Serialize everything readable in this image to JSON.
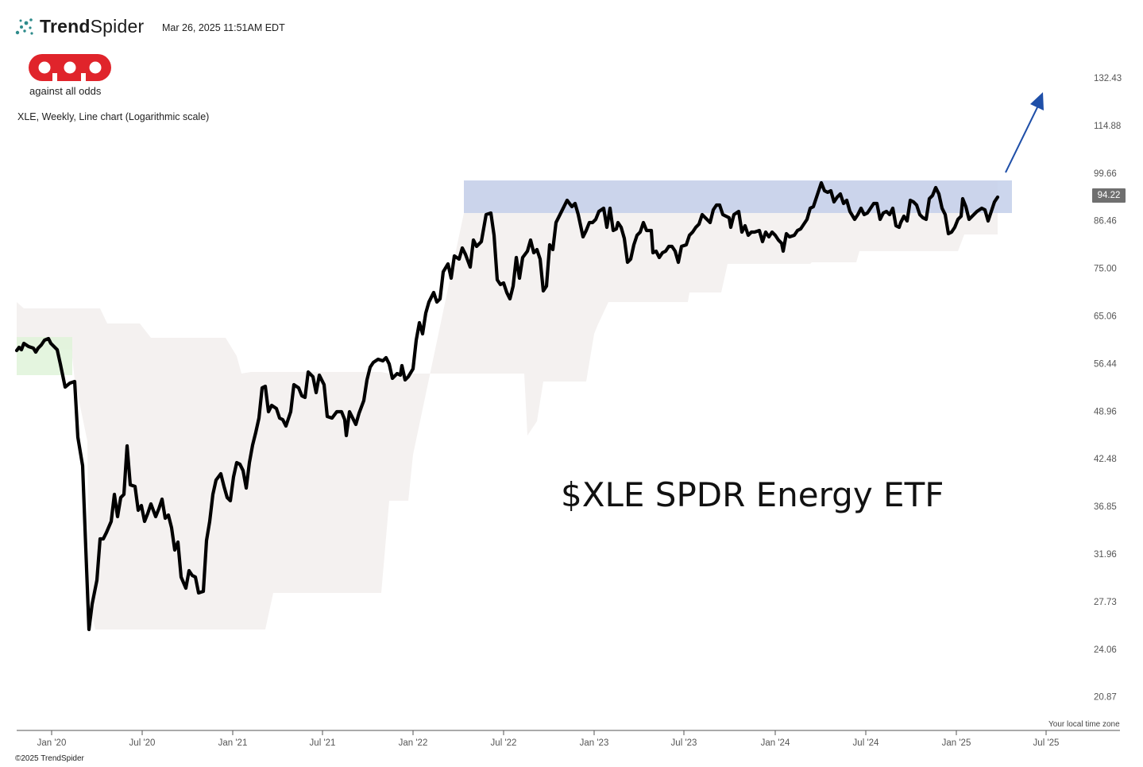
{
  "header": {
    "brand_strong": "Trend",
    "brand_light": "Spider",
    "timestamp": "Mar 26, 2025 11:51AM EDT",
    "brand_icon": "trendspider-dots-icon"
  },
  "logo": {
    "tagline": "against all odds",
    "color": "#e0242b"
  },
  "chart_subtitle": "XLE, Weekly, Line chart (Logarithmic scale)",
  "annotation": "$XLE SPDR Energy ETF",
  "footer": {
    "timezone": "Your local time zone",
    "copyright": "©2025 TrendSpider"
  },
  "price_badge": "94.22",
  "colors": {
    "line": "#000000",
    "band": "#f4f1f0",
    "resistance": "#c3cfea",
    "support_start": "#dff3d9",
    "arrow": "#1f4fa8"
  },
  "chart_data": {
    "type": "line",
    "title": "$XLE SPDR Energy ETF",
    "scale": "log",
    "ylim": [
      20.0,
      140.0
    ],
    "y_ticks": [
      "132.43",
      "114.88",
      "99.66",
      "86.46",
      "75.00",
      "65.06",
      "56.44",
      "48.96",
      "42.48",
      "36.85",
      "31.96",
      "27.73",
      "24.06",
      "20.87"
    ],
    "x_ticks": [
      "Jan '20",
      "Jul '20",
      "Jan '21",
      "Jul '21",
      "Jan '22",
      "Jul '22",
      "Jan '23",
      "Jul '23",
      "Jan '24",
      "Jul '24",
      "Jan '25",
      "Jul '25"
    ],
    "last_value": 94.22,
    "series": [
      {
        "x": [
          "2019-10",
          "2019-11",
          "2019-12",
          "2020-01",
          "2020-02",
          "2020-03",
          "2020-04",
          "2020-05",
          "2020-06",
          "2020-07",
          "2020-08",
          "2020-09",
          "2020-10",
          "2020-11",
          "2020-12",
          "2021-01",
          "2021-02",
          "2021-03",
          "2021-04",
          "2021-05",
          "2021-06",
          "2021-07",
          "2021-08",
          "2021-09",
          "2021-10",
          "2021-11",
          "2021-12",
          "2022-01",
          "2022-02",
          "2022-03",
          "2022-04",
          "2022-05",
          "2022-06",
          "2022-07",
          "2022-08",
          "2022-09",
          "2022-10",
          "2022-11",
          "2022-12",
          "2023-01",
          "2023-02",
          "2023-03",
          "2023-04",
          "2023-05",
          "2023-06",
          "2023-07",
          "2023-08",
          "2023-09",
          "2023-10",
          "2023-11",
          "2023-12",
          "2024-01",
          "2024-02",
          "2024-03",
          "2024-04",
          "2024-05",
          "2024-06",
          "2024-07",
          "2024-08",
          "2024-09",
          "2024-10",
          "2024-11",
          "2024-12",
          "2025-01",
          "2025-02",
          "2025-03"
        ],
        "y": [
          59.0,
          60.3,
          60.7,
          57.0,
          52.5,
          30.0,
          32.5,
          36.0,
          41.5,
          36.0,
          34.5,
          29.5,
          28.0,
          35.0,
          40.5,
          40.0,
          47.0,
          52.0,
          49.0,
          53.0,
          53.3,
          48.5,
          46.0,
          51.0,
          56.0,
          55.5,
          54.5,
          62.5,
          67.0,
          75.0,
          77.5,
          81.0,
          88.5,
          71.0,
          77.0,
          73.0,
          85.0,
          89.5,
          88.0,
          87.0,
          84.0,
          77.0,
          82.5,
          77.5,
          79.0,
          81.0,
          88.0,
          88.0,
          84.5,
          83.0,
          82.0,
          82.0,
          86.0,
          93.0,
          92.0,
          88.0,
          90.0,
          87.0,
          89.0,
          86.5,
          91.0,
          90.5,
          84.0,
          88.0,
          87.0,
          94.22
        ]
      }
    ]
  }
}
